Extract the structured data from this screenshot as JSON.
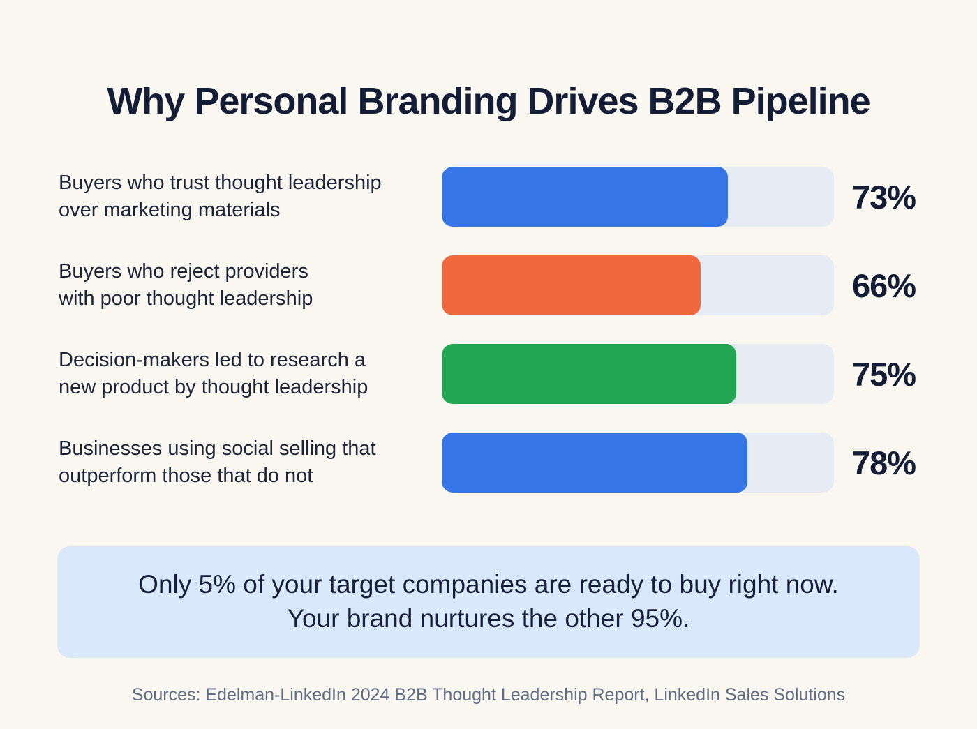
{
  "title": "Why Personal Branding Drives B2B Pipeline",
  "chart_data": {
    "type": "bar",
    "orientation": "horizontal",
    "title": "Why Personal Branding Drives B2B Pipeline",
    "categories": [
      "Buyers who trust thought leadership\nover marketing materials",
      "Buyers who reject providers\nwith poor thought leadership",
      "Decision-makers led to research a\nnew product by thought leadership",
      "Businesses using social selling that\noutperform those that do not"
    ],
    "values": [
      73,
      66,
      75,
      78
    ],
    "value_labels": [
      "73%",
      "66%",
      "75%",
      "78%"
    ],
    "bar_colors": [
      "#3575e6",
      "#f1683f",
      "#22a652",
      "#3575e6"
    ],
    "track_color": "#e7ecf4",
    "xlim": [
      0,
      100
    ],
    "grid": false,
    "legend": "none"
  },
  "callout": {
    "text": "Only 5% of your target companies are ready to buy right now.\nYour brand nurtures the other 95%.",
    "background_color": "#d9e8fa"
  },
  "source": "Sources: Edelman-LinkedIn 2024 B2B Thought Leadership Report, LinkedIn Sales Solutions",
  "colors": {
    "page_background": "#faf7f1",
    "heading_text": "#141d36",
    "label_text": "#1b2437",
    "source_text": "#5f6d82"
  }
}
